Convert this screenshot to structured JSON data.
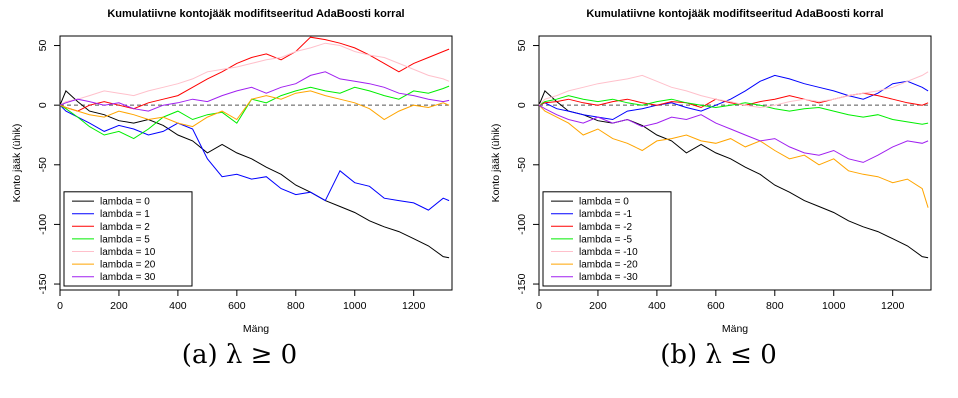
{
  "panels": [
    {
      "caption": "(a) λ ≥ 0",
      "chart_data": {
        "type": "line",
        "title": "Kumulatiivne kontojääk modifitseeritud AdaBoosti korral",
        "xlabel": "Mäng",
        "ylabel": "Konto jääk (ühik)",
        "xlim": [
          0,
          1330
        ],
        "ylim": [
          -155,
          58
        ],
        "xticks": [
          0,
          200,
          400,
          600,
          800,
          1000,
          1200
        ],
        "yticks": [
          50,
          0,
          -50,
          -100,
          -150
        ],
        "reference_line": 0,
        "legend_position": "bottom-left",
        "series": [
          {
            "name": "lambda = 0",
            "color": "#000000",
            "x": [
              0,
              20,
              60,
              100,
              150,
              200,
              250,
              300,
              350,
              400,
              450,
              500,
              550,
              600,
              650,
              700,
              750,
              800,
              850,
              900,
              950,
              1000,
              1050,
              1100,
              1150,
              1200,
              1250,
              1300,
              1320
            ],
            "y": [
              0,
              12,
              3,
              -5,
              -8,
              -13,
              -15,
              -12,
              -17,
              -25,
              -30,
              -40,
              -33,
              -40,
              -45,
              -52,
              -58,
              -67,
              -73,
              -80,
              -85,
              -90,
              -97,
              -102,
              -106,
              -112,
              -118,
              -127,
              -128
            ]
          },
          {
            "name": "lambda = 1",
            "color": "#0000ff",
            "x": [
              0,
              20,
              60,
              100,
              150,
              200,
              250,
              300,
              350,
              400,
              450,
              500,
              550,
              600,
              650,
              700,
              750,
              800,
              850,
              900,
              950,
              1000,
              1050,
              1100,
              1150,
              1200,
              1250,
              1300,
              1320
            ],
            "y": [
              0,
              -5,
              -10,
              -15,
              -22,
              -17,
              -20,
              -25,
              -22,
              -15,
              -20,
              -45,
              -60,
              -58,
              -62,
              -60,
              -70,
              -75,
              -73,
              -80,
              -55,
              -65,
              -68,
              -78,
              -80,
              -82,
              -88,
              -78,
              -80
            ]
          },
          {
            "name": "lambda = 2",
            "color": "#ff0000",
            "x": [
              0,
              20,
              60,
              100,
              150,
              200,
              250,
              300,
              350,
              400,
              450,
              500,
              550,
              600,
              650,
              700,
              750,
              800,
              850,
              900,
              950,
              1000,
              1050,
              1100,
              1150,
              1200,
              1250,
              1300,
              1320
            ],
            "y": [
              0,
              -2,
              -5,
              0,
              3,
              0,
              -3,
              2,
              5,
              8,
              15,
              22,
              28,
              35,
              40,
              43,
              38,
              45,
              57,
              55,
              52,
              48,
              42,
              35,
              28,
              35,
              40,
              45,
              47
            ]
          },
          {
            "name": "lambda = 5",
            "color": "#00ee00",
            "x": [
              0,
              20,
              60,
              100,
              150,
              200,
              250,
              300,
              350,
              400,
              450,
              500,
              550,
              600,
              650,
              700,
              750,
              800,
              850,
              900,
              950,
              1000,
              1050,
              1100,
              1150,
              1200,
              1250,
              1300,
              1320
            ],
            "y": [
              0,
              -3,
              -10,
              -18,
              -25,
              -22,
              -28,
              -20,
              -10,
              -5,
              -12,
              -8,
              -6,
              -15,
              5,
              2,
              8,
              12,
              15,
              12,
              10,
              15,
              12,
              8,
              5,
              12,
              10,
              14,
              16
            ]
          },
          {
            "name": "lambda = 10",
            "color": "#ffc0cb",
            "x": [
              0,
              20,
              60,
              100,
              150,
              200,
              250,
              300,
              350,
              400,
              450,
              500,
              550,
              600,
              650,
              700,
              750,
              800,
              850,
              900,
              950,
              1000,
              1050,
              1100,
              1150,
              1200,
              1250,
              1300,
              1320
            ],
            "y": [
              0,
              3,
              5,
              8,
              12,
              10,
              8,
              12,
              15,
              18,
              22,
              28,
              30,
              32,
              35,
              38,
              40,
              45,
              48,
              52,
              50,
              45,
              42,
              40,
              35,
              30,
              25,
              22,
              20
            ]
          },
          {
            "name": "lambda = 20",
            "color": "#ffa500",
            "x": [
              0,
              20,
              60,
              100,
              150,
              200,
              250,
              300,
              350,
              400,
              450,
              500,
              550,
              600,
              650,
              700,
              750,
              800,
              850,
              900,
              950,
              1000,
              1050,
              1100,
              1150,
              1200,
              1250,
              1300,
              1320
            ],
            "y": [
              0,
              -2,
              -5,
              -8,
              -10,
              -5,
              -8,
              -12,
              -10,
              -15,
              -18,
              -10,
              -5,
              -12,
              5,
              8,
              5,
              10,
              12,
              8,
              5,
              2,
              -3,
              -12,
              -5,
              0,
              -2,
              2,
              0
            ]
          },
          {
            "name": "lambda = 30",
            "color": "#a020f0",
            "x": [
              0,
              20,
              60,
              100,
              150,
              200,
              250,
              300,
              350,
              400,
              450,
              500,
              550,
              600,
              650,
              700,
              750,
              800,
              850,
              900,
              950,
              1000,
              1050,
              1100,
              1150,
              1200,
              1250,
              1300,
              1320
            ],
            "y": [
              0,
              2,
              5,
              3,
              0,
              2,
              -3,
              -5,
              0,
              2,
              5,
              3,
              8,
              12,
              15,
              10,
              15,
              18,
              25,
              28,
              22,
              20,
              18,
              15,
              10,
              8,
              5,
              3,
              4
            ]
          }
        ]
      }
    },
    {
      "caption": "(b) λ ≤ 0",
      "chart_data": {
        "type": "line",
        "title": "Kumulatiivne kontojääk modifitseeritud AdaBoosti korral",
        "xlabel": "Mäng",
        "ylabel": "Konto jääk (ühik)",
        "xlim": [
          0,
          1330
        ],
        "ylim": [
          -155,
          58
        ],
        "xticks": [
          0,
          200,
          400,
          600,
          800,
          1000,
          1200
        ],
        "yticks": [
          50,
          0,
          -50,
          -100,
          -150
        ],
        "reference_line": 0,
        "legend_position": "bottom-left",
        "series": [
          {
            "name": "lambda = 0",
            "color": "#000000",
            "x": [
              0,
              20,
              60,
              100,
              150,
              200,
              250,
              300,
              350,
              400,
              450,
              500,
              550,
              600,
              650,
              700,
              750,
              800,
              850,
              900,
              950,
              1000,
              1050,
              1100,
              1150,
              1200,
              1250,
              1300,
              1320
            ],
            "y": [
              0,
              12,
              3,
              -5,
              -8,
              -13,
              -15,
              -12,
              -17,
              -25,
              -30,
              -40,
              -33,
              -40,
              -45,
              -52,
              -58,
              -67,
              -73,
              -80,
              -85,
              -90,
              -97,
              -102,
              -106,
              -112,
              -118,
              -127,
              -128
            ]
          },
          {
            "name": "lambda = -1",
            "color": "#0000ff",
            "x": [
              0,
              20,
              60,
              100,
              150,
              200,
              250,
              300,
              350,
              400,
              450,
              500,
              550,
              600,
              650,
              700,
              750,
              800,
              850,
              900,
              950,
              1000,
              1050,
              1100,
              1150,
              1200,
              1250,
              1300,
              1320
            ],
            "y": [
              0,
              2,
              -3,
              -5,
              -8,
              -10,
              -12,
              -5,
              -3,
              0,
              2,
              -2,
              -5,
              0,
              5,
              12,
              20,
              25,
              22,
              18,
              15,
              12,
              8,
              5,
              10,
              18,
              20,
              15,
              12
            ]
          },
          {
            "name": "lambda = -2",
            "color": "#ff0000",
            "x": [
              0,
              20,
              60,
              100,
              150,
              200,
              250,
              300,
              350,
              400,
              450,
              500,
              550,
              600,
              650,
              700,
              750,
              800,
              850,
              900,
              950,
              1000,
              1050,
              1100,
              1150,
              1200,
              1250,
              1300,
              1320
            ],
            "y": [
              0,
              2,
              3,
              5,
              2,
              0,
              3,
              5,
              2,
              0,
              3,
              2,
              -2,
              5,
              2,
              0,
              3,
              5,
              8,
              5,
              2,
              5,
              8,
              10,
              8,
              5,
              2,
              0,
              2
            ]
          },
          {
            "name": "lambda = -5",
            "color": "#00ee00",
            "x": [
              0,
              20,
              60,
              100,
              150,
              200,
              250,
              300,
              350,
              400,
              450,
              500,
              550,
              600,
              650,
              700,
              750,
              800,
              850,
              900,
              950,
              1000,
              1050,
              1100,
              1150,
              1200,
              1250,
              1300,
              1320
            ],
            "y": [
              0,
              3,
              5,
              8,
              5,
              3,
              5,
              2,
              0,
              3,
              5,
              2,
              0,
              -2,
              0,
              2,
              0,
              -3,
              -5,
              -3,
              -2,
              -5,
              -8,
              -10,
              -8,
              -12,
              -14,
              -16,
              -15
            ]
          },
          {
            "name": "lambda = -10",
            "color": "#ffc0cb",
            "x": [
              0,
              20,
              60,
              100,
              150,
              200,
              250,
              300,
              350,
              400,
              450,
              500,
              550,
              600,
              650,
              700,
              750,
              800,
              850,
              900,
              950,
              1000,
              1050,
              1100,
              1150,
              1200,
              1250,
              1300,
              1320
            ],
            "y": [
              0,
              5,
              8,
              12,
              15,
              18,
              20,
              22,
              25,
              20,
              15,
              12,
              8,
              5,
              3,
              0,
              -2,
              0,
              3,
              5,
              3,
              5,
              8,
              10,
              12,
              15,
              20,
              25,
              28
            ]
          },
          {
            "name": "lambda = -20",
            "color": "#ffa500",
            "x": [
              0,
              20,
              60,
              100,
              150,
              200,
              250,
              300,
              350,
              400,
              450,
              500,
              550,
              600,
              650,
              700,
              750,
              800,
              850,
              900,
              950,
              1000,
              1050,
              1100,
              1150,
              1200,
              1250,
              1300,
              1320
            ],
            "y": [
              0,
              -5,
              -10,
              -15,
              -25,
              -20,
              -28,
              -32,
              -38,
              -30,
              -28,
              -25,
              -30,
              -32,
              -28,
              -35,
              -30,
              -38,
              -45,
              -42,
              -50,
              -45,
              -55,
              -58,
              -60,
              -65,
              -62,
              -70,
              -86
            ]
          },
          {
            "name": "lambda = -30",
            "color": "#a020f0",
            "x": [
              0,
              20,
              60,
              100,
              150,
              200,
              250,
              300,
              350,
              400,
              450,
              500,
              550,
              600,
              650,
              700,
              750,
              800,
              850,
              900,
              950,
              1000,
              1050,
              1100,
              1150,
              1200,
              1250,
              1300,
              1320
            ],
            "y": [
              0,
              -3,
              -8,
              -12,
              -15,
              -10,
              -15,
              -12,
              -18,
              -15,
              -10,
              -12,
              -8,
              -15,
              -20,
              -25,
              -30,
              -28,
              -35,
              -40,
              -42,
              -38,
              -45,
              -48,
              -42,
              -35,
              -30,
              -32,
              -30
            ]
          }
        ]
      }
    }
  ]
}
